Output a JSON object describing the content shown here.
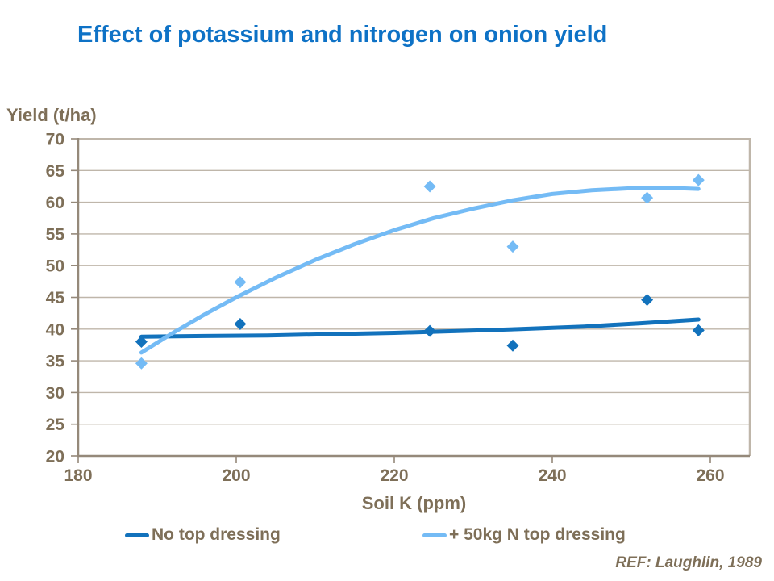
{
  "ref": "REF: Laughlin, 1989",
  "colors": {
    "title": "#0E72C6",
    "text": "#7E6F58",
    "axis": "#95897A",
    "grid": "#BFB6AA",
    "series1": "#1272BC",
    "series2": "#74BBF5"
  },
  "chart_data": {
    "type": "scatter",
    "title": "Effect of potassium and nitrogen on onion yield",
    "xlabel": "Soil K (ppm)",
    "ylabel": "Yield (t/ha)",
    "xlim": [
      180,
      265
    ],
    "ylim": [
      20,
      70
    ],
    "xticks": [
      180,
      200,
      220,
      240,
      260
    ],
    "yticks": [
      20,
      25,
      30,
      35,
      40,
      45,
      50,
      55,
      60,
      65,
      70
    ],
    "grid": true,
    "legend_position": "bottom",
    "series": [
      {
        "name": "No top dressing",
        "color": "#1272BC",
        "marker": "diamond",
        "points": [
          [
            188,
            38.0
          ],
          [
            200.5,
            40.8
          ],
          [
            224.5,
            39.7
          ],
          [
            235,
            37.4
          ],
          [
            252,
            44.6
          ],
          [
            258.5,
            39.8
          ]
        ],
        "trend": [
          [
            188,
            38.8
          ],
          [
            196,
            38.9
          ],
          [
            204,
            39.0
          ],
          [
            212,
            39.2
          ],
          [
            220,
            39.4
          ],
          [
            228,
            39.7
          ],
          [
            236,
            40.0
          ],
          [
            244,
            40.4
          ],
          [
            251,
            40.9
          ],
          [
            258.5,
            41.5
          ]
        ]
      },
      {
        "name": "+ 50kg N top dressing",
        "color": "#74BBF5",
        "marker": "diamond",
        "points": [
          [
            188,
            34.6
          ],
          [
            200.5,
            47.4
          ],
          [
            224.5,
            62.5
          ],
          [
            235,
            53.0
          ],
          [
            252,
            60.7
          ],
          [
            258.5,
            63.5
          ]
        ],
        "trend": [
          [
            188,
            36.3
          ],
          [
            192,
            39.4
          ],
          [
            196,
            42.3
          ],
          [
            200,
            45.0
          ],
          [
            205,
            48.1
          ],
          [
            210,
            50.9
          ],
          [
            215,
            53.4
          ],
          [
            220,
            55.6
          ],
          [
            225,
            57.5
          ],
          [
            230,
            59.0
          ],
          [
            235,
            60.3
          ],
          [
            240,
            61.3
          ],
          [
            245,
            61.9
          ],
          [
            250,
            62.2
          ],
          [
            254,
            62.3
          ],
          [
            258.5,
            62.1
          ]
        ]
      }
    ]
  }
}
